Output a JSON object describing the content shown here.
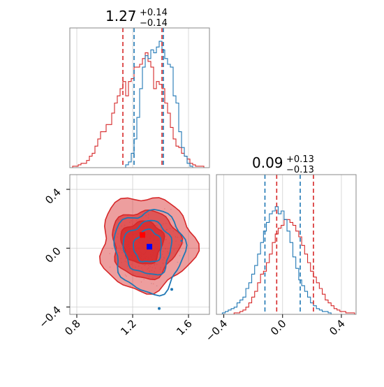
{
  "chart_data": {
    "type": "corner",
    "colors": {
      "series_a": "#1f77b4",
      "series_b": "#d62728",
      "marker_a": "#0000ff",
      "marker_b": "#ff0000"
    },
    "grid": true,
    "param1": {
      "title_value": "1.27",
      "title_plus": "+0.14",
      "title_minus": "−0.14",
      "range": [
        0.75,
        1.75
      ],
      "ticks": [
        0.8,
        1.2,
        1.6
      ],
      "tick_labels": [
        "0.8",
        "1.2",
        "1.6"
      ],
      "quantiles_series_a": [
        1.21,
        1.42
      ],
      "quantiles_series_b": [
        1.13,
        1.41
      ]
    },
    "param2": {
      "title_value": "0.09",
      "title_plus": "+0.13",
      "title_minus": "−0.13",
      "range": [
        -0.45,
        0.5
      ],
      "ticks": [
        -0.4,
        0.0,
        0.4
      ],
      "tick_labels": [
        "−0.4",
        "0.0",
        "0.4"
      ],
      "quantiles_series_a": [
        -0.12,
        0.12
      ],
      "quantiles_series_b": [
        -0.04,
        0.21
      ]
    },
    "hist_param1": {
      "bin_edges_start": 0.75,
      "bin_width": 0.02,
      "series_a": [
        0,
        0,
        0,
        0,
        0,
        0,
        0,
        0,
        0,
        0,
        0,
        0,
        0,
        0,
        0,
        0,
        0,
        0,
        0,
        0,
        2,
        4,
        10,
        20,
        35,
        55,
        70,
        78,
        76,
        82,
        80,
        84,
        88,
        82,
        76,
        72,
        70,
        50,
        45,
        25,
        14,
        8,
        3,
        1,
        0,
        0,
        0,
        0,
        0,
        0
      ],
      "series_b": [
        0,
        1,
        1,
        2,
        3,
        3,
        5,
        8,
        10,
        15,
        20,
        25,
        25,
        30,
        30,
        38,
        45,
        50,
        55,
        60,
        50,
        60,
        62,
        70,
        70,
        72,
        76,
        80,
        74,
        70,
        55,
        60,
        58,
        55,
        45,
        38,
        28,
        20,
        15,
        14,
        10,
        8,
        6,
        3,
        2,
        1,
        1,
        1,
        0,
        0
      ]
    },
    "hist_param2": {
      "bin_edges_start": -0.45,
      "bin_width": 0.02,
      "series_a": [
        0,
        0,
        1,
        2,
        3,
        4,
        5,
        8,
        10,
        12,
        18,
        22,
        28,
        34,
        42,
        50,
        58,
        64,
        70,
        72,
        75,
        70,
        72,
        66,
        58,
        50,
        40,
        32,
        24,
        20,
        16,
        12,
        8,
        6,
        4,
        3,
        2,
        2,
        1,
        0,
        0,
        0,
        0,
        0,
        0,
        0,
        0,
        0
      ],
      "series_b": [
        0,
        0,
        0,
        0,
        0,
        0,
        1,
        1,
        2,
        3,
        5,
        8,
        12,
        16,
        22,
        28,
        30,
        36,
        42,
        50,
        56,
        60,
        62,
        66,
        66,
        64,
        62,
        58,
        54,
        48,
        42,
        36,
        30,
        26,
        22,
        18,
        14,
        10,
        8,
        6,
        4,
        3,
        2,
        2,
        1,
        1,
        1,
        0
      ]
    },
    "scatter_2d": {
      "marker_series_a": {
        "x": 1.32,
        "y": 0.01
      },
      "marker_series_b": {
        "x": 1.27,
        "y": 0.09
      },
      "contours_series_b": [
        {
          "cx": 1.3,
          "cy": 0.03,
          "rx": 0.335,
          "ry": 0.32,
          "opacity": 0.45
        },
        {
          "cx": 1.29,
          "cy": 0.03,
          "rx": 0.24,
          "ry": 0.23,
          "opacity": 0.6
        },
        {
          "cx": 1.27,
          "cy": 0.04,
          "rx": 0.15,
          "ry": 0.145,
          "opacity": 0.75
        }
      ],
      "contours_series_a": [
        {
          "cx": 1.32,
          "cy": -0.02,
          "rx": 0.25,
          "ry": 0.28
        },
        {
          "cx": 1.31,
          "cy": 0.0,
          "rx": 0.17,
          "ry": 0.18
        },
        {
          "cx": 1.31,
          "cy": 0.01,
          "rx": 0.1,
          "ry": 0.11
        }
      ]
    }
  }
}
